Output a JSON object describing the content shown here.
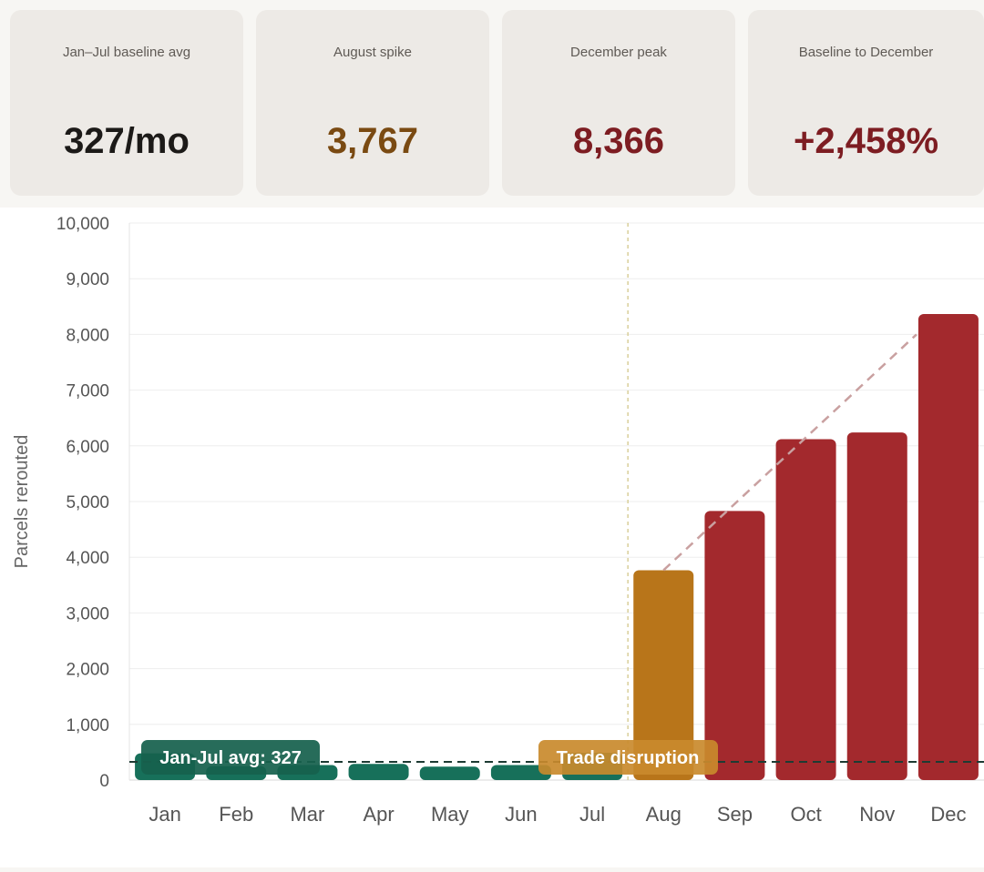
{
  "kpis": [
    {
      "label": "Jan–Jul baseline avg",
      "value": "327/mo",
      "color": "#1c1a18"
    },
    {
      "label": "August spike",
      "value": "3,767",
      "color": "#7a4a12"
    },
    {
      "label": "December peak",
      "value": "8,366",
      "color": "#7d1d22"
    },
    {
      "label": "Baseline to December",
      "value": "+2,458%",
      "color": "#7d1d22"
    }
  ],
  "chart_data": {
    "type": "bar",
    "title": "",
    "xlabel": "",
    "ylabel": "Parcels rerouted",
    "ylim": [
      0,
      10000
    ],
    "yticks": [
      "0",
      "1,000",
      "2,000",
      "3,000",
      "4,000",
      "5,000",
      "6,000",
      "7,000",
      "8,000",
      "9,000",
      "10,000"
    ],
    "categories": [
      "Jan",
      "Feb",
      "Mar",
      "Apr",
      "May",
      "Jun",
      "Jul",
      "Aug",
      "Sep",
      "Oct",
      "Nov",
      "Dec"
    ],
    "values": [
      480,
      250,
      270,
      290,
      240,
      270,
      490,
      3767,
      4830,
      6120,
      6240,
      8366
    ],
    "bar_colors": [
      "#17705a",
      "#17705a",
      "#17705a",
      "#17705a",
      "#17705a",
      "#17705a",
      "#17705a",
      "#b8751a",
      "#a3292d",
      "#a3292d",
      "#a3292d",
      "#a3292d"
    ],
    "baseline": {
      "value": 327,
      "label": "Jan-Jul avg: 327"
    },
    "event": {
      "between": [
        "Jul",
        "Aug"
      ],
      "label": "Trade disruption"
    },
    "trend": {
      "from": [
        "Aug",
        3767
      ],
      "to": [
        "Dec",
        8000
      ]
    },
    "grid": true
  }
}
